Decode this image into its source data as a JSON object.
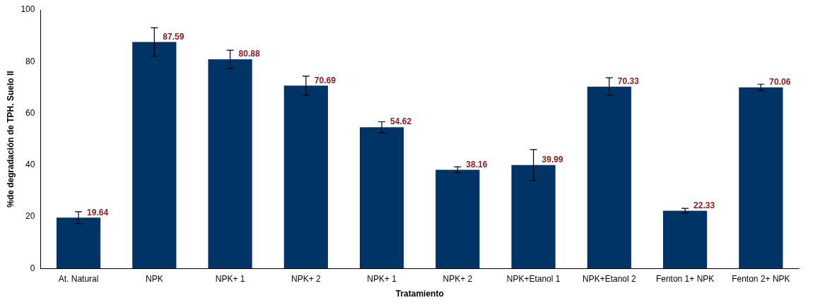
{
  "chart_data": {
    "type": "bar",
    "categories": [
      "At. Natural",
      "NPK",
      "NPK+ 1",
      "NPK+ 2",
      "NPK+ 1",
      "NPK+ 2",
      "NPK+Etanol 1",
      "NPK+Etanol 2",
      "Fenton 1+ NPK",
      "Fenton 2+ NPK"
    ],
    "values": [
      19.64,
      87.59,
      80.88,
      70.69,
      54.62,
      38.16,
      39.99,
      70.33,
      22.33,
      70.06
    ],
    "errors": [
      2.3,
      5.5,
      3.5,
      3.7,
      2.1,
      1.1,
      6,
      3.4,
      0.9,
      1.2
    ],
    "color": "#003366",
    "data_labels": true,
    "xlabel": "Tratamiento",
    "ylabel": "%de degradación de TPH. Suelo II",
    "ylim": [
      0,
      100
    ],
    "yticks": [
      0,
      20,
      40,
      60,
      80,
      100
    ],
    "grid": false,
    "legend": false
  }
}
